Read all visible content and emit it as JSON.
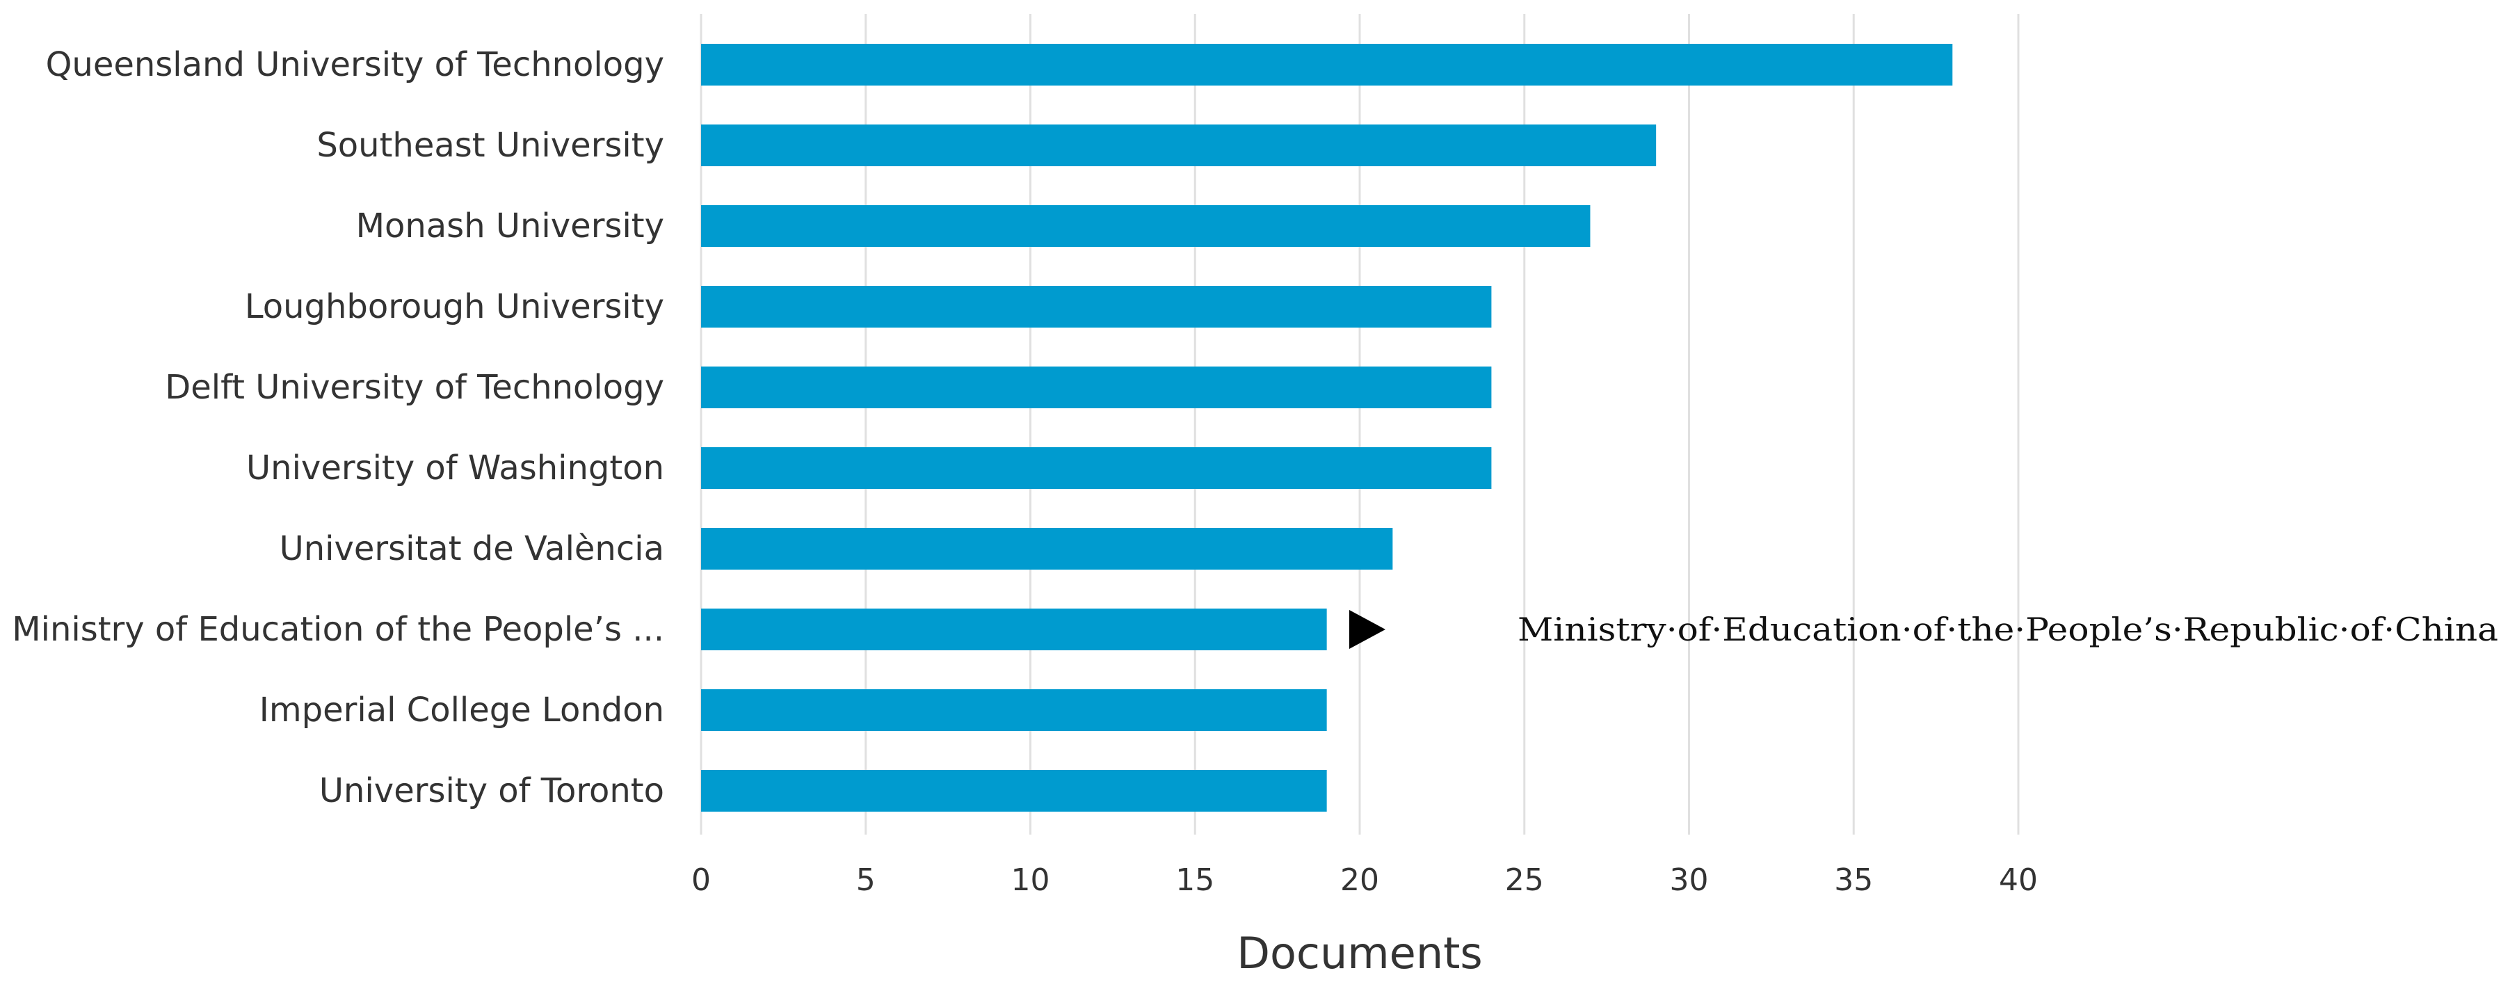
{
  "chart_data": {
    "type": "bar",
    "orientation": "horizontal",
    "categories": [
      "Queensland University of Technology",
      "Southeast University",
      "Monash University",
      "Loughborough University",
      "Delft University of Technology",
      "University of Washington",
      "Universitat de València",
      "Ministry of Education of the People’s ...",
      "Imperial College London",
      "University of Toronto"
    ],
    "values": [
      38,
      29,
      27,
      24,
      24,
      24,
      21,
      19,
      19,
      19
    ],
    "xlabel": "Documents",
    "ylabel": "",
    "xlim": [
      0,
      40
    ],
    "xticks": [
      0,
      5,
      10,
      15,
      20,
      25,
      30,
      35,
      40
    ],
    "grid": "vertical",
    "bar_color": "#009bcf",
    "annotation": {
      "category_index": 7,
      "text": "Ministry·of·Education·of·the·People’s·Republic·of·China",
      "marker": "right-pointing-triangle",
      "marker_color": "#000000"
    }
  }
}
